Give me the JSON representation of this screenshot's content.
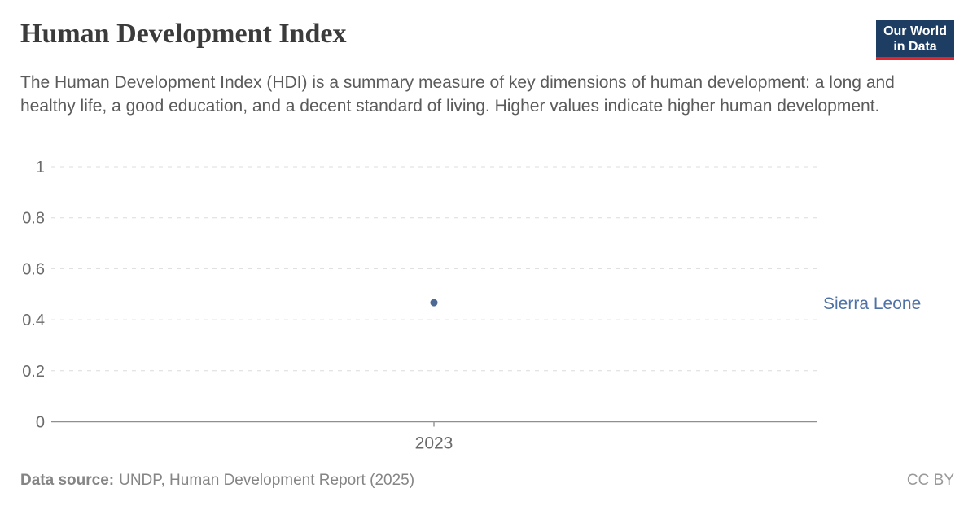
{
  "header": {
    "title": "Human Development Index",
    "subtitle": "The Human Development Index (HDI) is a summary measure of key dimensions of human development: a long and healthy life, a good education, and a decent standard of living. Higher values indicate higher human development."
  },
  "logo": {
    "line1": "Our World",
    "line2": "in Data",
    "bg_color": "#1d3d63",
    "accent_color": "#e0262c"
  },
  "chart_data": {
    "type": "scatter",
    "title": "Human Development Index",
    "categories": [
      "2023"
    ],
    "series": [
      {
        "name": "Sierra Leone",
        "values": [
          0.467
        ],
        "point_color": "#4c6a94",
        "label_color": "#4e72a5"
      }
    ],
    "xlabel": "",
    "ylabel": "",
    "ylim": [
      0,
      1
    ],
    "yticks": [
      {
        "value": 0,
        "label": "0"
      },
      {
        "value": 0.2,
        "label": "0.2"
      },
      {
        "value": 0.4,
        "label": "0.4"
      },
      {
        "value": 0.6,
        "label": "0.6"
      },
      {
        "value": 0.8,
        "label": "0.8"
      },
      {
        "value": 1,
        "label": "1"
      }
    ],
    "grid": "horizontal-dashed",
    "legend_position": "entity-label-right",
    "axis_color": "#8f8f8f",
    "gridline_color": "#dcdcdc",
    "tick_label_color": "#6b6b6b"
  },
  "footer": {
    "data_source_label": "Data source:",
    "data_source_text": "UNDP, Human Development Report (2025)",
    "license": "CC BY"
  }
}
